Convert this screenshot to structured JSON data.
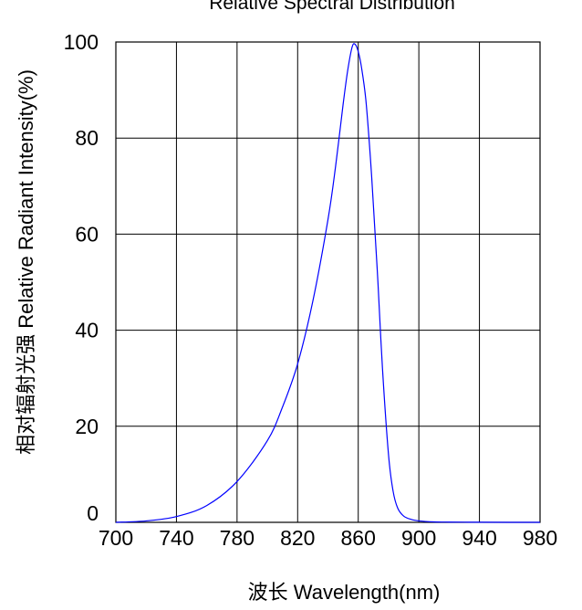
{
  "chart_data": {
    "type": "line",
    "title": "Relative Spectral Distribution",
    "xlabel": "波长  Wavelength(nm)",
    "ylabel": "相对辐射光强  Relative  Radiant Intensity(%)",
    "xlim": [
      700,
      980
    ],
    "ylim": [
      0,
      100
    ],
    "x_ticks": [
      700,
      740,
      780,
      820,
      860,
      900,
      940,
      980
    ],
    "y_ticks": [
      0,
      20,
      40,
      60,
      80,
      100
    ],
    "grid": true,
    "series": [
      {
        "color": "#0000ff",
        "x": [
          700,
          720,
          740,
          760,
          780,
          800,
          810,
          820,
          830,
          840,
          845,
          850,
          853,
          856,
          858,
          860,
          862,
          865,
          868,
          870,
          873,
          876,
          880,
          883,
          886,
          890,
          895,
          900,
          910,
          920,
          940,
          960,
          980
        ],
        "y": [
          0,
          0.3,
          1.2,
          3.5,
          8.5,
          17,
          24,
          33,
          46,
          63,
          74,
          87,
          94,
          99,
          99.5,
          98,
          95,
          88,
          76,
          66,
          50,
          32,
          14,
          6.5,
          3,
          1.3,
          0.6,
          0.3,
          0.1,
          0.05,
          0.02,
          0,
          0
        ]
      }
    ]
  }
}
